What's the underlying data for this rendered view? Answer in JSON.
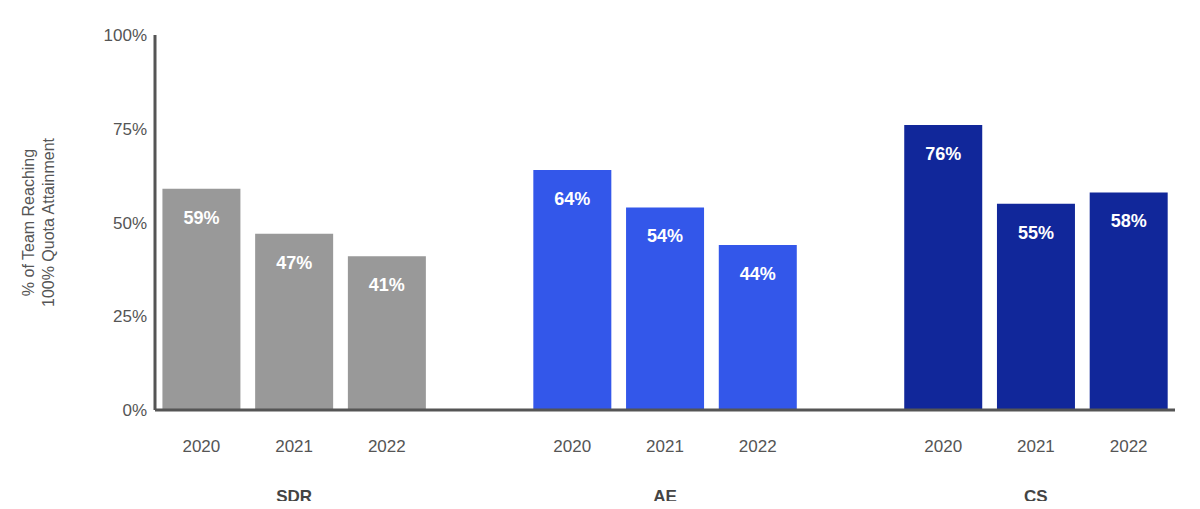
{
  "chart_data": {
    "type": "bar",
    "y_label": "% of Team Reaching 100% Quota Attainment",
    "categories": [
      "2020",
      "2021",
      "2022"
    ],
    "series": [
      {
        "name": "SDR",
        "color": "#999999",
        "values": [
          59,
          47,
          41
        ],
        "value_labels": [
          "59%",
          "47%",
          "41%"
        ]
      },
      {
        "name": "AE",
        "color": "#3357ea",
        "values": [
          64,
          54,
          44
        ],
        "value_labels": [
          "64%",
          "54%",
          "44%"
        ]
      },
      {
        "name": "CS",
        "color": "#11279a",
        "values": [
          76,
          55,
          58
        ],
        "value_labels": [
          "76%",
          "55%",
          "58%"
        ]
      }
    ],
    "ylim": [
      0,
      100
    ],
    "yticks": [
      {
        "value": 0,
        "label": "0%"
      },
      {
        "value": 25,
        "label": "25%"
      },
      {
        "value": 50,
        "label": "50%"
      },
      {
        "value": 75,
        "label": "75%"
      },
      {
        "value": 100,
        "label": "100%"
      }
    ],
    "grid": false,
    "data_labels": true
  }
}
